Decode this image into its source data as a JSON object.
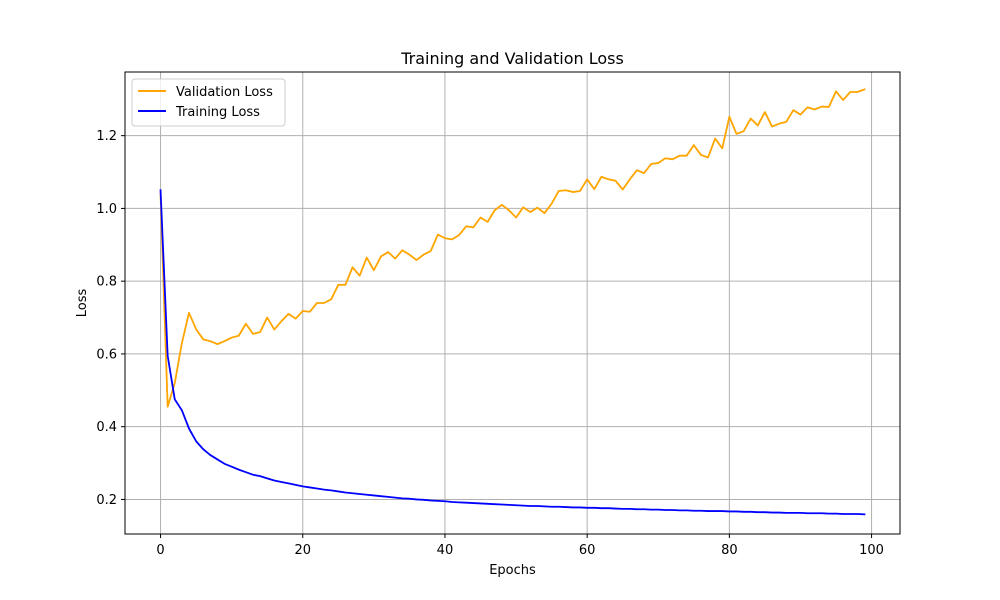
{
  "chart_data": {
    "type": "line",
    "title": "Training and Validation Loss",
    "xlabel": "Epochs",
    "ylabel": "Loss",
    "xlim": [
      -5,
      104
    ],
    "ylim": [
      0.105,
      1.375
    ],
    "xticks": [
      0,
      20,
      40,
      60,
      80,
      100
    ],
    "yticks": [
      0.2,
      0.4,
      0.6,
      0.8,
      1.0,
      1.2
    ],
    "xtick_labels": [
      "0",
      "20",
      "40",
      "60",
      "80",
      "100"
    ],
    "ytick_labels": [
      "0.2",
      "0.4",
      "0.6",
      "0.8",
      "1.0",
      "1.2"
    ],
    "grid": true,
    "legend_position": "top-left",
    "series": [
      {
        "name": "Validation Loss",
        "color": "#ffa500",
        "x": [
          0,
          1,
          2,
          3,
          4,
          5,
          6,
          7,
          8,
          9,
          10,
          11,
          12,
          13,
          14,
          15,
          16,
          17,
          18,
          19,
          20,
          21,
          22,
          23,
          24,
          25,
          26,
          27,
          28,
          29,
          30,
          31,
          32,
          33,
          34,
          35,
          36,
          37,
          38,
          39,
          40,
          41,
          42,
          43,
          44,
          45,
          46,
          47,
          48,
          49,
          50,
          51,
          52,
          53,
          54,
          55,
          56,
          57,
          58,
          59,
          60,
          61,
          62,
          63,
          64,
          65,
          66,
          67,
          68,
          69,
          70,
          71,
          72,
          73,
          74,
          75,
          76,
          77,
          78,
          79,
          80,
          81,
          82,
          83,
          84,
          85,
          86,
          87,
          88,
          89,
          90,
          91,
          92,
          93,
          94,
          95,
          96,
          97,
          98,
          99
        ],
        "values": [
          1.04,
          0.455,
          0.52,
          0.63,
          0.713,
          0.668,
          0.64,
          0.635,
          0.627,
          0.635,
          0.645,
          0.65,
          0.683,
          0.655,
          0.66,
          0.7,
          0.667,
          0.69,
          0.71,
          0.697,
          0.718,
          0.716,
          0.74,
          0.74,
          0.75,
          0.79,
          0.79,
          0.838,
          0.815,
          0.865,
          0.83,
          0.868,
          0.88,
          0.862,
          0.885,
          0.873,
          0.858,
          0.873,
          0.883,
          0.928,
          0.918,
          0.915,
          0.927,
          0.951,
          0.948,
          0.975,
          0.963,
          0.995,
          1.01,
          0.995,
          0.975,
          1.003,
          0.99,
          1.002,
          0.987,
          1.013,
          1.048,
          1.05,
          1.045,
          1.048,
          1.08,
          1.053,
          1.087,
          1.08,
          1.076,
          1.052,
          1.08,
          1.105,
          1.097,
          1.122,
          1.125,
          1.138,
          1.135,
          1.145,
          1.145,
          1.174,
          1.147,
          1.14,
          1.192,
          1.165,
          1.252,
          1.205,
          1.212,
          1.247,
          1.228,
          1.265,
          1.225,
          1.233,
          1.238,
          1.27,
          1.258,
          1.278,
          1.272,
          1.28,
          1.279,
          1.322,
          1.298,
          1.32,
          1.32,
          1.327
        ]
      },
      {
        "name": "Training Loss",
        "color": "#0000ff",
        "x": [
          0,
          1,
          2,
          3,
          4,
          5,
          6,
          7,
          8,
          9,
          10,
          11,
          12,
          13,
          14,
          15,
          16,
          17,
          18,
          19,
          20,
          21,
          22,
          23,
          24,
          25,
          26,
          27,
          28,
          29,
          30,
          31,
          32,
          33,
          34,
          35,
          36,
          37,
          38,
          39,
          40,
          41,
          42,
          43,
          44,
          45,
          46,
          47,
          48,
          49,
          50,
          51,
          52,
          53,
          54,
          55,
          56,
          57,
          58,
          59,
          60,
          61,
          62,
          63,
          64,
          65,
          66,
          67,
          68,
          69,
          70,
          71,
          72,
          73,
          74,
          75,
          76,
          77,
          78,
          79,
          80,
          81,
          82,
          83,
          84,
          85,
          86,
          87,
          88,
          89,
          90,
          91,
          92,
          93,
          94,
          95,
          96,
          97,
          98,
          99
        ],
        "values": [
          1.05,
          0.595,
          0.475,
          0.445,
          0.395,
          0.36,
          0.338,
          0.322,
          0.31,
          0.298,
          0.29,
          0.282,
          0.275,
          0.268,
          0.264,
          0.258,
          0.252,
          0.248,
          0.244,
          0.24,
          0.236,
          0.233,
          0.23,
          0.227,
          0.225,
          0.222,
          0.219,
          0.217,
          0.215,
          0.213,
          0.211,
          0.209,
          0.207,
          0.205,
          0.203,
          0.202,
          0.2,
          0.199,
          0.197,
          0.196,
          0.195,
          0.193,
          0.192,
          0.191,
          0.19,
          0.189,
          0.188,
          0.187,
          0.186,
          0.185,
          0.184,
          0.183,
          0.182,
          0.182,
          0.181,
          0.18,
          0.18,
          0.179,
          0.178,
          0.178,
          0.177,
          0.177,
          0.176,
          0.176,
          0.175,
          0.174,
          0.174,
          0.173,
          0.173,
          0.172,
          0.172,
          0.171,
          0.171,
          0.17,
          0.17,
          0.169,
          0.169,
          0.168,
          0.168,
          0.168,
          0.167,
          0.167,
          0.166,
          0.166,
          0.165,
          0.165,
          0.164,
          0.164,
          0.163,
          0.163,
          0.163,
          0.162,
          0.162,
          0.162,
          0.161,
          0.161,
          0.16,
          0.16,
          0.16,
          0.159
        ]
      }
    ]
  }
}
